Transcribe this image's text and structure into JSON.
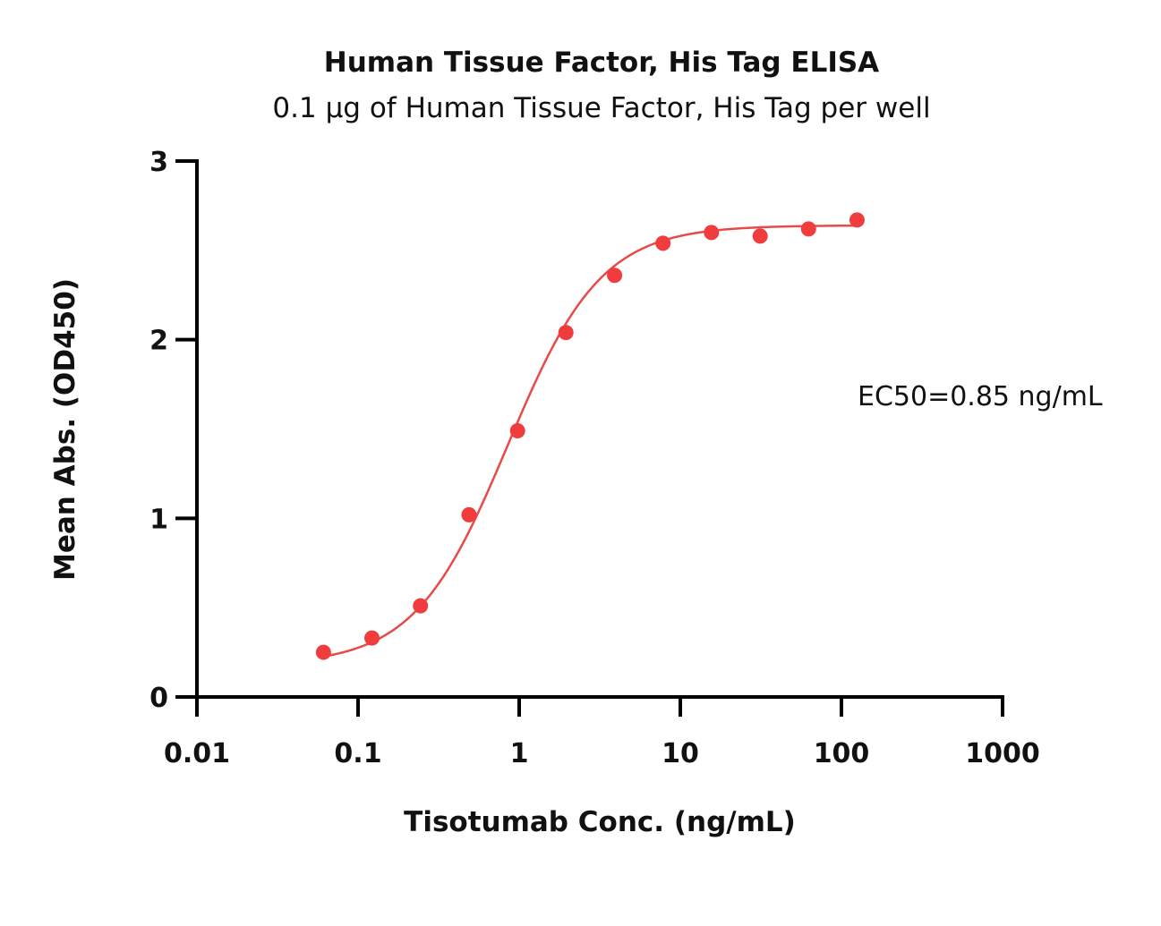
{
  "chart_data": {
    "type": "scatter",
    "title": "Human Tissue Factor, His Tag ELISA",
    "subtitle": "0.1 µg of Human Tissue Factor, His Tag per well",
    "xlabel": "Tisotumab Conc. (ng/mL)",
    "ylabel": "Mean Abs. (OD450)",
    "x_scale": "log",
    "xlim": [
      0.01,
      1000
    ],
    "ylim": [
      0,
      3
    ],
    "x_ticks": [
      0.01,
      0.1,
      1,
      10,
      100,
      1000
    ],
    "x_tick_labels": [
      "0.01",
      "0.1",
      "1",
      "10",
      "100",
      "1000"
    ],
    "y_ticks": [
      0,
      1,
      2,
      3
    ],
    "y_tick_labels": [
      "0",
      "1",
      "2",
      "3"
    ],
    "grid": false,
    "color": "#f03c3c",
    "curve_color": "#e84a4a",
    "series": [
      {
        "x": [
          0.061,
          0.122,
          0.244,
          0.488,
          0.977,
          1.95,
          3.91,
          7.81,
          15.6,
          31.3,
          62.5,
          125
        ],
        "y": [
          0.25,
          0.33,
          0.51,
          1.02,
          1.49,
          2.04,
          2.36,
          2.54,
          2.6,
          2.58,
          2.62,
          2.67
        ]
      }
    ],
    "fit": {
      "model": "4PL",
      "bottom": 0.18,
      "top": 2.64,
      "ec50": 0.85,
      "hill": 1.5
    },
    "annotation": "EC50=0.85 ng/mL"
  }
}
